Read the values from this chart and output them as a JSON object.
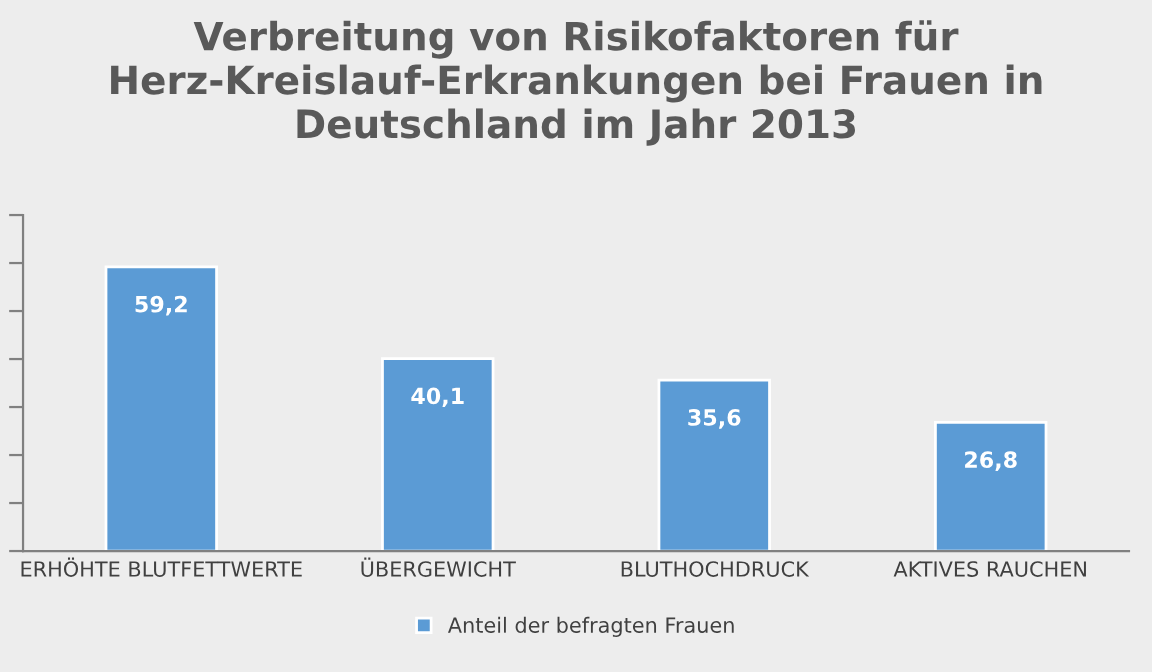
{
  "chart_data": {
    "type": "bar",
    "title": "Verbreitung von Risikofaktoren für Herz-Kreislauf-Erkrankungen bei Frauen in Deutschland im Jahr 2013",
    "categories": [
      "ERHÖHTE BLUTFETTWERTE",
      "ÜBERGEWICHT",
      "BLUTHOCHDRUCK",
      "AKTIVES RAUCHEN"
    ],
    "series": [
      {
        "name": "Anteil der befragten Frauen",
        "color": "#5b9bd5",
        "values": [
          59.2,
          40.1,
          35.6,
          26.8
        ],
        "value_labels": [
          "59,2",
          "40,1",
          "35,6",
          "26,8"
        ]
      }
    ],
    "ylim": [
      0,
      70
    ],
    "yticks": [
      {
        "value": 0,
        "label": null
      },
      {
        "value": 10,
        "label": null
      },
      {
        "value": 20,
        "label": null
      },
      {
        "value": 30,
        "label": null
      },
      {
        "value": 40,
        "label": null
      },
      {
        "value": 50,
        "label": null
      },
      {
        "value": 60,
        "label": null
      },
      {
        "value": 70,
        "label": null
      }
    ],
    "tick_labels": "x",
    "grid": false,
    "legend": "bottom"
  }
}
